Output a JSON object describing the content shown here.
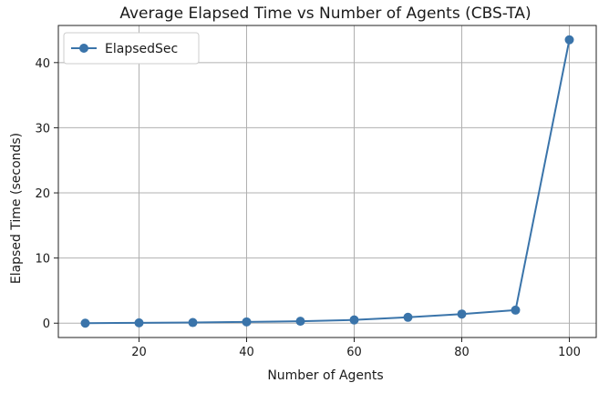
{
  "chart_data": {
    "type": "line",
    "title": "Average Elapsed Time vs Number of Agents (CBS-TA)",
    "xlabel": "Number of Agents",
    "ylabel": "Elapsed Time (seconds)",
    "xlim": [
      5,
      105
    ],
    "ylim": [
      -2.2,
      45.7
    ],
    "xticks": [
      20,
      40,
      60,
      80,
      100
    ],
    "yticks": [
      0,
      10,
      20,
      30,
      40
    ],
    "grid": true,
    "legend_position": "top-left",
    "series": [
      {
        "name": "ElapsedSec",
        "color": "#3a74aa",
        "marker": "circle",
        "x": [
          10,
          20,
          30,
          40,
          50,
          60,
          70,
          80,
          90,
          100
        ],
        "y": [
          0.0,
          0.05,
          0.1,
          0.2,
          0.3,
          0.5,
          0.9,
          1.4,
          2.0,
          43.5
        ]
      }
    ]
  }
}
